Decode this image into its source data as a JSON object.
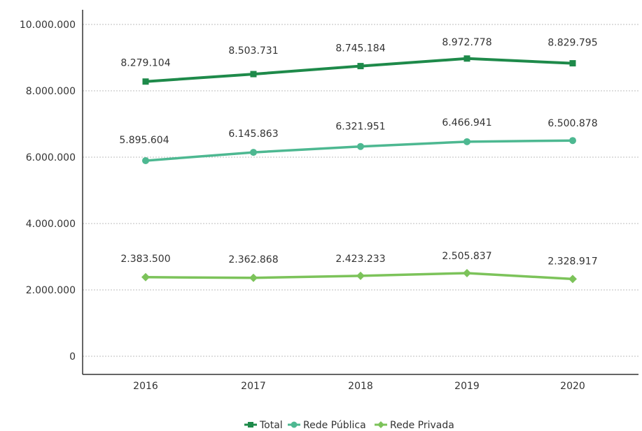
{
  "chart_data": {
    "type": "line",
    "x": [
      2016,
      2017,
      2018,
      2019,
      2020
    ],
    "x_tick_labels": [
      "2016",
      "2017",
      "2018",
      "2019",
      "2020"
    ],
    "ylim": [
      0,
      10000000
    ],
    "y_ticks": [
      0,
      2000000,
      4000000,
      6000000,
      8000000,
      10000000
    ],
    "y_tick_labels": [
      "0",
      "2.000.000",
      "4.000.000",
      "6.000.000",
      "8.000.000",
      "10.000.000"
    ],
    "grid": "horizontal dotted",
    "legend_position": "bottom-center",
    "series": [
      {
        "name": "Total",
        "color": "#1e8a4a",
        "marker": "square",
        "values": [
          8279104,
          8503731,
          8745184,
          8972778,
          8829795
        ],
        "labels": [
          "8.279.104",
          "8.503.731",
          "8.745.184",
          "8.972.778",
          "8.829.795"
        ]
      },
      {
        "name": "Rede Pública",
        "color": "#4db891",
        "marker": "circle",
        "values": [
          5895604,
          6145863,
          6321951,
          6466941,
          6500878
        ],
        "labels": [
          "5.895.604",
          "6.145.863",
          "6.321.951",
          "6.466.941",
          "6.500.878"
        ]
      },
      {
        "name": "Rede Privada",
        "color": "#7cc35a",
        "marker": "diamond",
        "values": [
          2383500,
          2362868,
          2423233,
          2505837,
          2328917
        ],
        "labels": [
          "2.383.500",
          "2.362.868",
          "2.423.233",
          "2.505.837",
          "2.328.917"
        ]
      }
    ]
  }
}
